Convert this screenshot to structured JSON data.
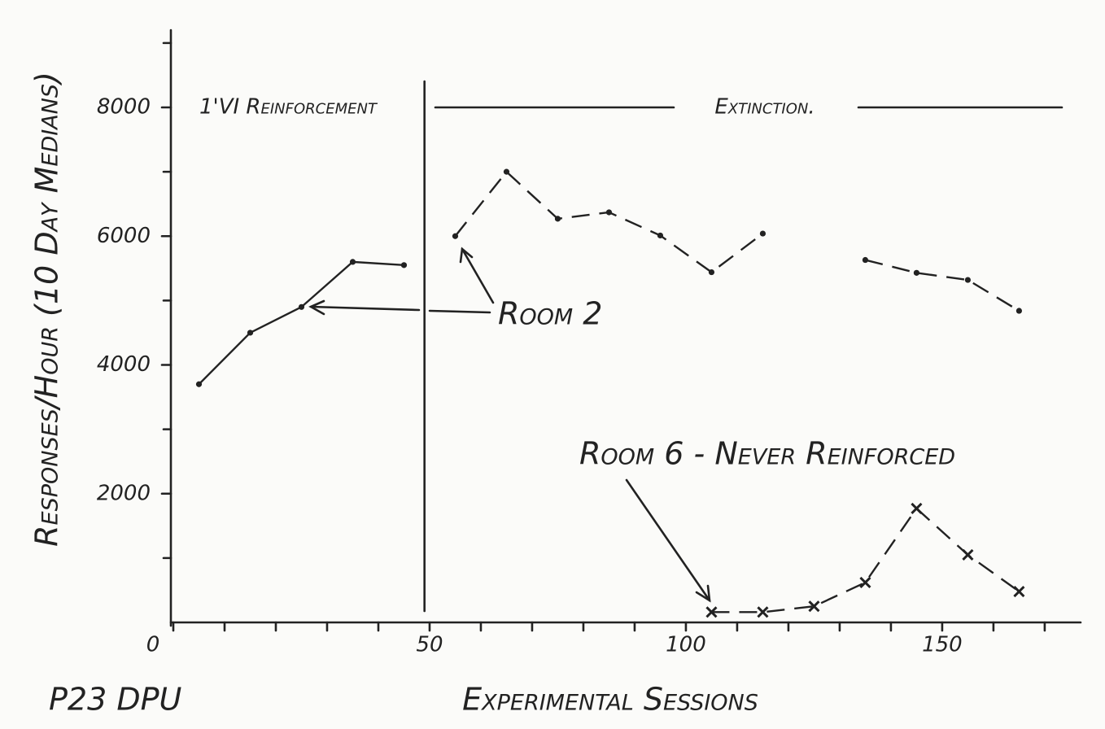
{
  "chart_data": {
    "type": "line",
    "x": [
      5,
      15,
      25,
      35,
      45,
      55,
      65,
      75,
      85,
      95,
      105,
      115,
      125,
      135,
      145,
      155,
      165
    ],
    "series": [
      {
        "name": "Room 2",
        "color": "#222222",
        "marker": "dot",
        "values": [
          3700,
          4500,
          4900,
          5600,
          5550,
          6000,
          7000,
          6270,
          6370,
          6010,
          5440,
          6040,
          null,
          5630,
          5430,
          5320,
          4840
        ]
      },
      {
        "name": "Room 6 - Never Reinforced",
        "color": "#222222",
        "marker": "x",
        "values": [
          null,
          null,
          null,
          null,
          null,
          null,
          null,
          null,
          null,
          null,
          160,
          160,
          250,
          620,
          1770,
          1050,
          480
        ]
      }
    ],
    "phases": [
      {
        "label": "1'VI Reinforcement",
        "line_style": "solid"
      },
      {
        "label": "Extinction.",
        "line_style": "dashed"
      }
    ],
    "phase_boundary": 49,
    "xlim": [
      0,
      177
    ],
    "ylim": [
      0,
      9200
    ],
    "xticks": [
      0,
      50,
      100,
      150
    ],
    "yticks": [
      2000,
      4000,
      6000,
      8000
    ],
    "x_minor_ticks": [
      10,
      20,
      30,
      40,
      60,
      70,
      80,
      90,
      110,
      120,
      130,
      140,
      160,
      170
    ],
    "y_minor_ticks": [
      1000,
      3000,
      5000,
      7000,
      9000
    ],
    "x_label": "Experimental Sessions",
    "y_label": "Responses/Hour (10 Day Medians)",
    "footnote": "P23 DPU",
    "room_2_label": "Room 2"
  }
}
